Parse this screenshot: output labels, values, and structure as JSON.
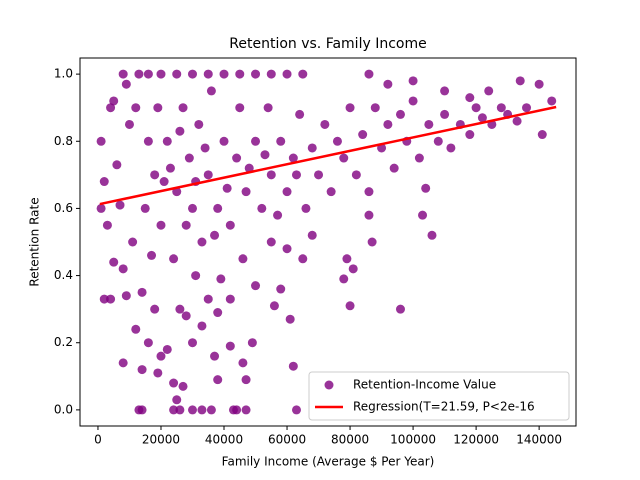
{
  "chart_data": {
    "type": "scatter",
    "title": "Retention vs. Family Income",
    "xlabel": "Family Income (Average $ Per Year)",
    "ylabel": "Retention Rate",
    "xlim": [
      -5700,
      151700
    ],
    "ylim": [
      -0.048,
      1.048
    ],
    "xticks": [
      0,
      20000,
      40000,
      60000,
      80000,
      100000,
      120000,
      140000
    ],
    "yticks": [
      {
        "value": 0,
        "label": "0.0"
      },
      0.2,
      0.4,
      0.6,
      0.8,
      {
        "value": 1,
        "label": "1.0"
      }
    ],
    "legend": "lower right",
    "series": [
      {
        "name": "Retention-Income Value",
        "type": "scatter",
        "color": "#800080",
        "x": [
          13000,
          14000,
          24000,
          26000,
          30000,
          33000,
          36000,
          43000,
          44000,
          47000,
          63000,
          25000,
          24000,
          27000,
          38000,
          47000,
          62000,
          14000,
          19000,
          8000,
          46000,
          42000,
          49000,
          37000,
          12000,
          16000,
          20000,
          22000,
          30000,
          33000,
          4000,
          2000,
          9000,
          5000,
          8000,
          3000,
          1000,
          2000,
          1000,
          4000,
          5000,
          8000,
          9000,
          13000,
          16000,
          20000,
          25000,
          30000,
          35000,
          40000,
          45000,
          50000,
          55000,
          60000,
          65000,
          86000,
          92000,
          100000,
          110000,
          118000,
          124000,
          134000,
          140000,
          144000,
          141000,
          104000,
          103000,
          106000,
          96000,
          87000,
          80000,
          78000,
          79000,
          81000,
          86000,
          65000,
          68000,
          60000,
          55000,
          56000,
          58000,
          61000,
          50000,
          46000,
          42000,
          39000,
          35000,
          38000,
          28000,
          26000,
          31000,
          18000,
          14000,
          17000,
          11000,
          7000,
          6000,
          10000,
          12000,
          15000,
          18000,
          20000,
          22000,
          24000,
          25000,
          27000,
          28000,
          29000,
          30000,
          32000,
          33000,
          35000,
          36000,
          38000,
          40000,
          42000,
          44000,
          45000,
          47000,
          50000,
          52000,
          54000,
          55000,
          58000,
          60000,
          62000,
          64000,
          66000,
          68000,
          70000,
          72000,
          74000,
          76000,
          78000,
          80000,
          82000,
          84000,
          86000,
          88000,
          90000,
          92000,
          94000,
          96000,
          98000,
          100000,
          102000,
          105000,
          108000,
          110000,
          112000,
          115000,
          118000,
          120000,
          122000,
          125000,
          128000,
          130000,
          133000,
          136000,
          16000,
          19000,
          21000,
          23000,
          26000,
          31000,
          34000,
          37000,
          41000,
          48000,
          53000,
          57000,
          63000
        ],
        "values": [
          0,
          0,
          0,
          0,
          0,
          0,
          0,
          0,
          0,
          0,
          0,
          0.03,
          0.08,
          0.07,
          0.09,
          0.09,
          0.13,
          0.12,
          0.11,
          0.14,
          0.14,
          0.19,
          0.2,
          0.16,
          0.24,
          0.2,
          0.16,
          0.18,
          0.2,
          0.25,
          0.33,
          0.33,
          0.34,
          0.44,
          0.42,
          0.55,
          0.6,
          0.68,
          0.8,
          0.9,
          0.92,
          1,
          0.97,
          1,
          1,
          1,
          1,
          1,
          1,
          1,
          1,
          1,
          1,
          1,
          1,
          1,
          0.97,
          0.98,
          0.95,
          0.93,
          0.95,
          0.98,
          0.97,
          0.92,
          0.82,
          0.66,
          0.58,
          0.52,
          0.3,
          0.5,
          0.31,
          0.39,
          0.45,
          0.42,
          0.58,
          0.45,
          0.52,
          0.48,
          0.5,
          0.31,
          0.36,
          0.27,
          0.37,
          0.45,
          0.33,
          0.39,
          0.33,
          0.29,
          0.28,
          0.3,
          0.4,
          0.3,
          0.35,
          0.46,
          0.5,
          0.61,
          0.73,
          0.85,
          0.9,
          0.6,
          0.7,
          0.55,
          0.8,
          0.45,
          0.65,
          0.9,
          0.55,
          0.75,
          0.6,
          0.85,
          0.5,
          0.7,
          0.95,
          0.6,
          0.8,
          0.55,
          0.75,
          0.9,
          0.65,
          0.8,
          0.6,
          0.9,
          0.7,
          0.8,
          0.65,
          0.75,
          0.88,
          0.6,
          0.78,
          0.7,
          0.85,
          0.65,
          0.8,
          0.75,
          0.9,
          0.7,
          0.82,
          0.65,
          0.9,
          0.78,
          0.85,
          0.72,
          0.88,
          0.8,
          0.92,
          0.75,
          0.85,
          0.8,
          0.88,
          0.78,
          0.85,
          0.82,
          0.9,
          0.87,
          0.85,
          0.9,
          0.88,
          0.86,
          0.9,
          0.8,
          0.9,
          0.68,
          0.72,
          0.83,
          0.68,
          0.78,
          0.52,
          0.66,
          0.72,
          0.76,
          0.58,
          0.7
        ]
      },
      {
        "name": "Regression(T=21.59, P<2e-16",
        "type": "line",
        "color": "#ff0000",
        "x": [
          600,
          145400
        ],
        "values": [
          0.613,
          0.902
        ]
      }
    ]
  }
}
